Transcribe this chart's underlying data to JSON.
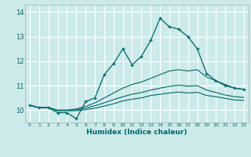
{
  "xlabel": "Humidex (Indice chaleur)",
  "bg_color": "#cceaea",
  "grid_color": "#ffffff",
  "line_color": "#006666",
  "xlim": [
    -0.5,
    23.5
  ],
  "ylim": [
    9.5,
    14.3
  ],
  "xticks": [
    0,
    1,
    2,
    3,
    4,
    5,
    6,
    7,
    8,
    9,
    10,
    11,
    12,
    13,
    14,
    15,
    16,
    17,
    18,
    19,
    20,
    21,
    22,
    23
  ],
  "yticks": [
    10,
    11,
    12,
    13,
    14
  ],
  "line1_x": [
    0,
    1,
    2,
    3,
    4,
    5,
    6,
    7,
    8,
    9,
    10,
    11,
    12,
    13,
    14,
    15,
    16,
    17,
    18,
    19,
    20,
    21,
    22,
    23
  ],
  "line1_y": [
    10.2,
    10.1,
    10.1,
    9.9,
    9.9,
    9.65,
    10.35,
    10.5,
    11.45,
    11.9,
    12.5,
    11.85,
    12.2,
    12.85,
    13.75,
    13.4,
    13.3,
    13.0,
    12.5,
    11.5,
    11.2,
    11.0,
    10.9,
    10.85
  ],
  "line2_x": [
    0,
    1,
    2,
    3,
    4,
    5,
    6,
    7,
    8,
    9,
    10,
    11,
    12,
    13,
    14,
    15,
    16,
    17,
    18,
    19,
    20,
    21,
    22,
    23
  ],
  "line2_y": [
    10.2,
    10.1,
    10.1,
    10.0,
    10.0,
    10.05,
    10.15,
    10.3,
    10.5,
    10.7,
    10.9,
    11.05,
    11.15,
    11.3,
    11.45,
    11.6,
    11.65,
    11.6,
    11.65,
    11.35,
    11.2,
    11.05,
    10.9,
    10.85
  ],
  "line3_x": [
    0,
    1,
    2,
    3,
    4,
    5,
    6,
    7,
    8,
    9,
    10,
    11,
    12,
    13,
    14,
    15,
    16,
    17,
    18,
    19,
    20,
    21,
    22,
    23
  ],
  "line3_y": [
    10.2,
    10.1,
    10.1,
    10.0,
    10.0,
    10.02,
    10.08,
    10.18,
    10.3,
    10.43,
    10.55,
    10.65,
    10.72,
    10.82,
    10.9,
    10.97,
    11.02,
    10.98,
    11.0,
    10.82,
    10.72,
    10.62,
    10.55,
    10.52
  ],
  "line4_x": [
    0,
    1,
    2,
    3,
    4,
    5,
    6,
    7,
    8,
    9,
    10,
    11,
    12,
    13,
    14,
    15,
    16,
    17,
    18,
    19,
    20,
    21,
    22,
    23
  ],
  "line4_y": [
    10.2,
    10.1,
    10.1,
    9.98,
    9.98,
    9.98,
    10.02,
    10.08,
    10.17,
    10.26,
    10.38,
    10.45,
    10.5,
    10.6,
    10.65,
    10.7,
    10.74,
    10.7,
    10.73,
    10.6,
    10.55,
    10.48,
    10.42,
    10.4
  ]
}
